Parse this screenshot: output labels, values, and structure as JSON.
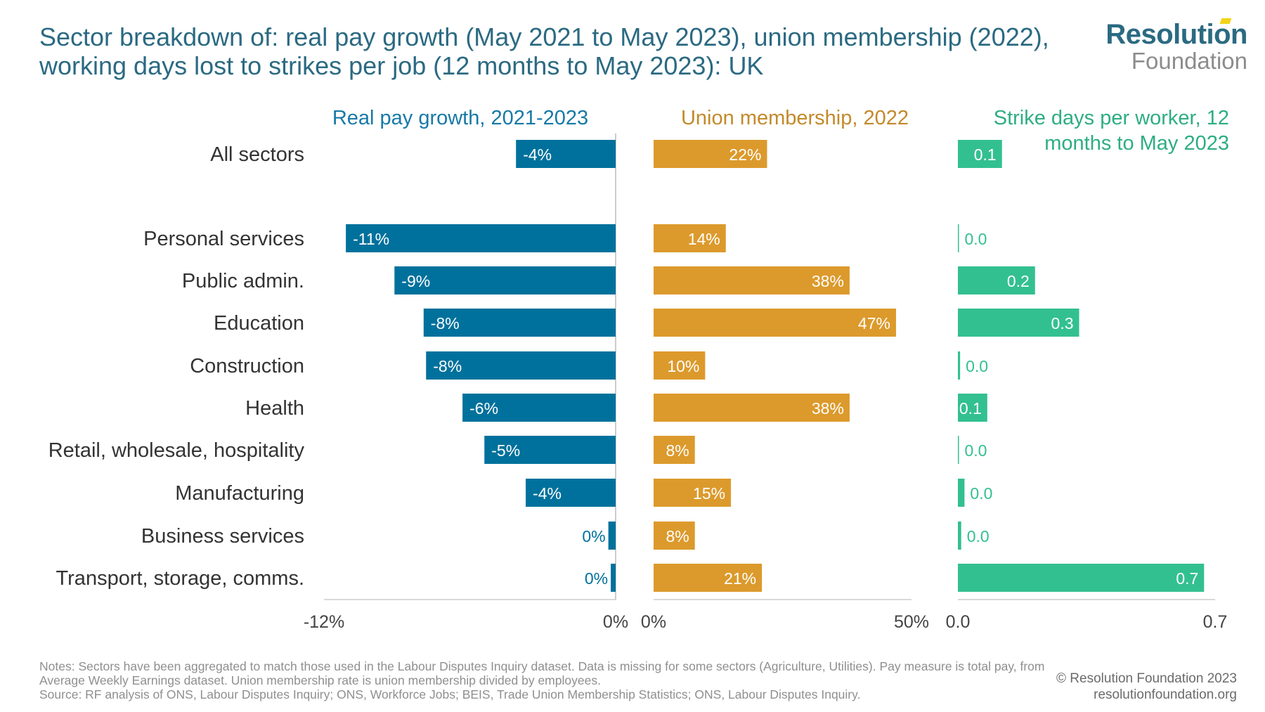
{
  "title": "Sector breakdown of: real pay growth (May 2021 to May 2023), union membership (2022), working days lost to strikes per job (12 months to May 2023): UK",
  "logo": {
    "line1": "Resolution",
    "line2": "Foundation"
  },
  "colors": {
    "title": "#2b6a82",
    "pay": "#00719c",
    "union": "#dc9a2c",
    "strike": "#33c090",
    "pay_header": "#1779a6",
    "union_header": "#c38a2a",
    "strike_header": "#2eae81",
    "label": "#333333"
  },
  "chart_data": {
    "type": "bar",
    "orientation": "horizontal",
    "categories": [
      "All sectors",
      "Personal services",
      "Public admin.",
      "Education",
      "Construction",
      "Health",
      "Retail, wholesale, hospitality",
      "Manufacturing",
      "Business services",
      "Transport, storage, comms."
    ],
    "panels": [
      {
        "key": "pay",
        "title": "Real pay growth, 2021-2023",
        "xlim": [
          -12,
          0
        ],
        "tick_labels": [
          "-12%",
          "0%"
        ],
        "values": [
          -4.1,
          -11.1,
          -9.1,
          -7.9,
          -7.8,
          -6.3,
          -5.4,
          -3.7,
          -0.3,
          -0.2
        ],
        "labels": [
          "-4%",
          "-11%",
          "-9%",
          "-8%",
          "-8%",
          "-6%",
          "-5%",
          "-4%",
          "0%",
          "0%"
        ]
      },
      {
        "key": "union",
        "title": "Union membership, 2022",
        "xlim": [
          0,
          50
        ],
        "tick_labels": [
          "0%",
          "50%"
        ],
        "values": [
          22,
          14,
          38,
          47,
          10,
          38,
          8,
          15,
          8,
          21
        ],
        "labels": [
          "22%",
          "14%",
          "38%",
          "47%",
          "10%",
          "38%",
          "8%",
          "15%",
          "8%",
          "21%"
        ]
      },
      {
        "key": "strike",
        "title": "Strike days per worker, 12 months to May 2023",
        "xlim": [
          0,
          0.7
        ],
        "tick_labels": [
          "0.0",
          "0.7"
        ],
        "values": [
          0.12,
          0.002,
          0.21,
          0.33,
          0.006,
          0.08,
          0.002,
          0.018,
          0.009,
          0.67
        ],
        "labels": [
          "0.1",
          "0.0",
          "0.2",
          "0.3",
          "0.0",
          "0.1",
          "0.0",
          "0.0",
          "0.0",
          "0.7"
        ]
      }
    ]
  },
  "notes": "Notes: Sectors have been aggregated to match those used in the Labour Disputes Inquiry dataset. Data is missing for some sectors (Agriculture, Utilities). Pay measure is total pay, from Average Weekly Earnings dataset. Union membership rate is union membership divided by employees.",
  "source": "Source: RF analysis of ONS, Labour Disputes Inquiry; ONS, Workforce Jobs; BEIS, Trade Union Membership Statistics; ONS, Labour Disputes Inquiry.",
  "copyright": "© Resolution Foundation 2023",
  "website": "resolutionfoundation.org"
}
